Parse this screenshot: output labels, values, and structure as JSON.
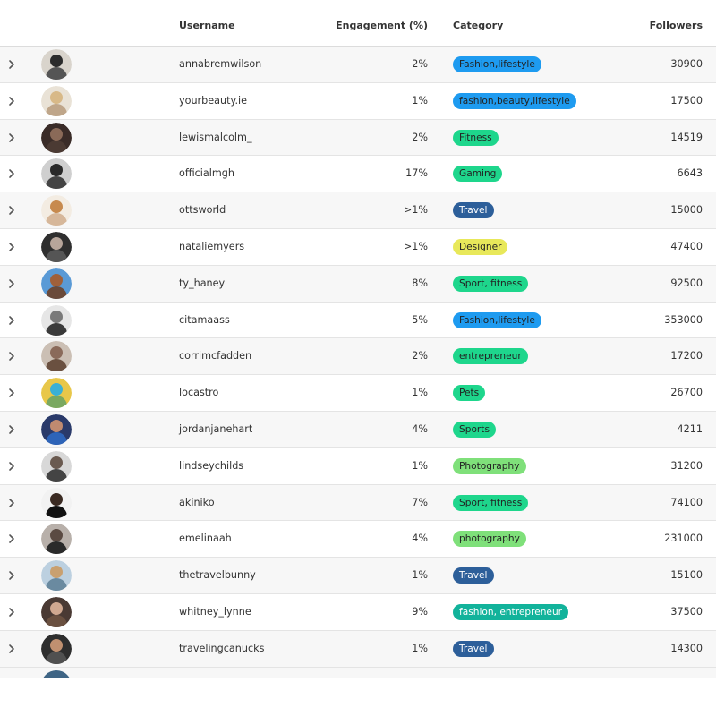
{
  "headers": {
    "username": "Username",
    "engagement": "Engagement (%)",
    "category": "Category",
    "followers": "Followers"
  },
  "rows": [
    {
      "username": "annabremwilson",
      "engagement": "2%",
      "category": "Fashion,lifestyle",
      "category_color": "#1e9bf0",
      "followers": "30900",
      "avatar_colors": [
        "#d9d4cc",
        "#2c2c2c",
        "#555555"
      ]
    },
    {
      "username": "yourbeauty.ie",
      "engagement": "1%",
      "category": "fashion,beauty,lifestyle",
      "category_color": "#1e9bf0",
      "followers": "17500",
      "avatar_colors": [
        "#e9e2d6",
        "#d8b988",
        "#bfa68a"
      ]
    },
    {
      "username": "lewismalcolm_",
      "engagement": "2%",
      "category": "Fitness",
      "category_color": "#1ed68c",
      "followers": "14519",
      "avatar_colors": [
        "#3a2c28",
        "#8a6a58",
        "#4b3a33"
      ]
    },
    {
      "username": "officialmgh",
      "engagement": "17%",
      "category": "Gaming",
      "category_color": "#1ed68c",
      "followers": "6643",
      "avatar_colors": [
        "#cfcfcf",
        "#2a2a2a",
        "#444444"
      ]
    },
    {
      "username": "ottsworld",
      "engagement": ">1%",
      "category": "Travel",
      "category_color": "#2d5f9a",
      "followers": "15000",
      "avatar_colors": [
        "#f3ece2",
        "#c78a4e",
        "#d6b79a"
      ]
    },
    {
      "username": "nataliemyers",
      "engagement": ">1%",
      "category": "Designer",
      "category_color": "#e8e85a",
      "followers": "47400",
      "avatar_colors": [
        "#2f2f2f",
        "#b7a59a",
        "#555555"
      ]
    },
    {
      "username": "ty_haney",
      "engagement": "8%",
      "category": "Sport, fitness",
      "category_color": "#1ed68c",
      "followers": "92500",
      "avatar_colors": [
        "#5a9ad6",
        "#a0603a",
        "#6a4a3a"
      ]
    },
    {
      "username": "citamaass",
      "engagement": "5%",
      "category": "Fashion,lifestyle",
      "category_color": "#1e9bf0",
      "followers": "353000",
      "avatar_colors": [
        "#e6e6e6",
        "#7a7a7a",
        "#3a3a3a"
      ]
    },
    {
      "username": "corrimcfadden",
      "engagement": "2%",
      "category": "entrepreneur",
      "category_color": "#1ed68c",
      "followers": "17200",
      "avatar_colors": [
        "#cbbfb4",
        "#8a6a5a",
        "#6a5040"
      ]
    },
    {
      "username": "locastro",
      "engagement": "1%",
      "category": "Pets",
      "category_color": "#1ed68c",
      "followers": "26700",
      "avatar_colors": [
        "#e8c74a",
        "#3ab0d6",
        "#7aa860"
      ]
    },
    {
      "username": "jordanjanehart",
      "engagement": "4%",
      "category": "Sports",
      "category_color": "#1ed68c",
      "followers": "4211",
      "avatar_colors": [
        "#2a3a6a",
        "#c08a70",
        "#2e64b8"
      ]
    },
    {
      "username": "lindseychilds",
      "engagement": "1%",
      "category": "Photography",
      "category_color": "#7fe07a",
      "followers": "31200",
      "avatar_colors": [
        "#d8d8d8",
        "#6a5a50",
        "#444444"
      ]
    },
    {
      "username": "akiniko",
      "engagement": "7%",
      "category": "Sport, fitness",
      "category_color": "#1ed68c",
      "followers": "74100",
      "avatar_colors": [
        "#f2f2f2",
        "#3a2a22",
        "#111111"
      ]
    },
    {
      "username": "emelinaah",
      "engagement": "4%",
      "category": "photography",
      "category_color": "#7fe07a",
      "followers": "231000",
      "avatar_colors": [
        "#b8b0aa",
        "#5a4a42",
        "#2a2a2a"
      ]
    },
    {
      "username": "thetravelbunny",
      "engagement": "1%",
      "category": "Travel",
      "category_color": "#2d5f9a",
      "followers": "15100",
      "avatar_colors": [
        "#bcd0e0",
        "#c9a070",
        "#6a8aa0"
      ]
    },
    {
      "username": "whitney_lynne",
      "engagement": "9%",
      "category": "fashion, entrepreneur",
      "category_color": "#12b39b",
      "followers": "37500",
      "avatar_colors": [
        "#4a3a34",
        "#d0a890",
        "#6a5040"
      ]
    },
    {
      "username": "travelingcanucks",
      "engagement": "1%",
      "category": "Travel",
      "category_color": "#2d5f9a",
      "followers": "14300",
      "avatar_colors": [
        "#2e2e2e",
        "#c09070",
        "#505050"
      ]
    }
  ],
  "icons": {
    "row_expand": "chevron-right-icon"
  }
}
